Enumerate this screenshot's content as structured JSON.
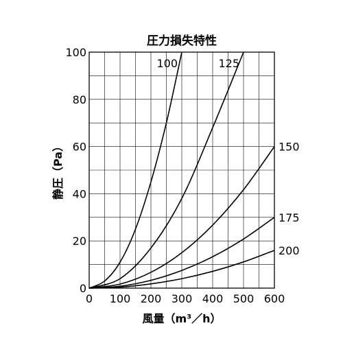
{
  "chart_data": {
    "type": "line",
    "title": "圧力損失特性",
    "xlabel": "風量（m³／h）",
    "ylabel": "静圧（Pa）",
    "xlim": [
      0,
      600
    ],
    "ylim": [
      0,
      100
    ],
    "x_major_ticks": [
      0,
      100,
      200,
      300,
      400,
      500,
      600
    ],
    "x_minor_step": 50,
    "y_major_ticks": [
      0,
      20,
      40,
      60,
      80,
      100
    ],
    "y_minor_step": 10,
    "grid": true,
    "x_tick_labels": [
      "0",
      "100",
      "200",
      "300",
      "400",
      "500",
      "600"
    ],
    "y_tick_labels": [
      "0",
      "20",
      "40",
      "60",
      "80",
      "100"
    ],
    "series": [
      {
        "name": "100",
        "label": "100",
        "label_placement": "top",
        "points": [
          [
            0,
            0
          ],
          [
            50,
            3
          ],
          [
            100,
            11
          ],
          [
            150,
            25
          ],
          [
            200,
            45
          ],
          [
            250,
            70
          ],
          [
            300,
            100
          ]
        ]
      },
      {
        "name": "125",
        "label": "125",
        "label_placement": "top",
        "points": [
          [
            0,
            0
          ],
          [
            100,
            4
          ],
          [
            200,
            17
          ],
          [
            300,
            38
          ],
          [
            400,
            68
          ],
          [
            500,
            100
          ]
        ]
      },
      {
        "name": "150",
        "label": "150",
        "label_placement": "right",
        "points": [
          [
            0,
            0
          ],
          [
            100,
            1.7
          ],
          [
            200,
            6.7
          ],
          [
            300,
            15
          ],
          [
            400,
            26.7
          ],
          [
            500,
            41.7
          ],
          [
            600,
            60
          ]
        ]
      },
      {
        "name": "175",
        "label": "175",
        "label_placement": "right",
        "points": [
          [
            0,
            0
          ],
          [
            100,
            0.8
          ],
          [
            200,
            3.3
          ],
          [
            300,
            7.5
          ],
          [
            400,
            13.3
          ],
          [
            500,
            20.8
          ],
          [
            600,
            30
          ]
        ]
      },
      {
        "name": "200",
        "label": "200",
        "label_placement": "right",
        "points": [
          [
            0,
            0
          ],
          [
            100,
            0.4
          ],
          [
            200,
            1.8
          ],
          [
            300,
            4
          ],
          [
            400,
            7.1
          ],
          [
            500,
            11.1
          ],
          [
            600,
            16
          ]
        ]
      }
    ]
  }
}
